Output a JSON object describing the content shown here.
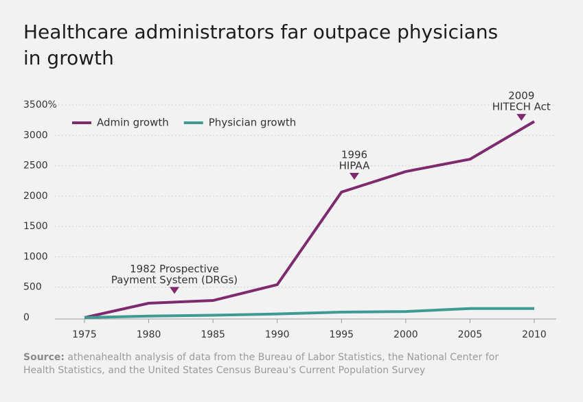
{
  "chart_data": {
    "type": "line",
    "title": "Healthcare administrators far outpace physicians in growth",
    "x": [
      1975,
      1980,
      1985,
      1990,
      1995,
      2000,
      2005,
      2010
    ],
    "series": [
      {
        "name": "Admin growth",
        "color": "#7d2a6e",
        "values": [
          0,
          237,
          282,
          542,
          2066,
          2404,
          2607,
          3228
        ]
      },
      {
        "name": "Physician growth",
        "color": "#3d9b93",
        "values": [
          0,
          25,
          40,
          60,
          90,
          100,
          150,
          150
        ]
      }
    ],
    "xlim": [
      1975,
      2010
    ],
    "xticks": [
      1975,
      1980,
      1985,
      1990,
      1995,
      2000,
      2005,
      2010
    ],
    "ylim": [
      0,
      3500
    ],
    "yticks": [
      0,
      500,
      1000,
      1500,
      2000,
      2500,
      3000,
      {
        "value": 3500,
        "label": "3500%"
      }
    ],
    "grid": true,
    "legend": "top-left",
    "annotations": [
      {
        "x": 1982,
        "lines": [
          "1982 Prospective",
          "Payment System (DRGs)"
        ]
      },
      {
        "x": 1996,
        "lines": [
          "1996",
          "HIPAA"
        ]
      },
      {
        "x": 2009,
        "lines": [
          "2009",
          "HITECH Act"
        ]
      }
    ],
    "source_label": "Source:",
    "source": "athenahealth analysis of data from the Bureau of Labor Statistics, the National Center for Health Statistics, and the United States Census Bureau's Current Population Survey"
  }
}
